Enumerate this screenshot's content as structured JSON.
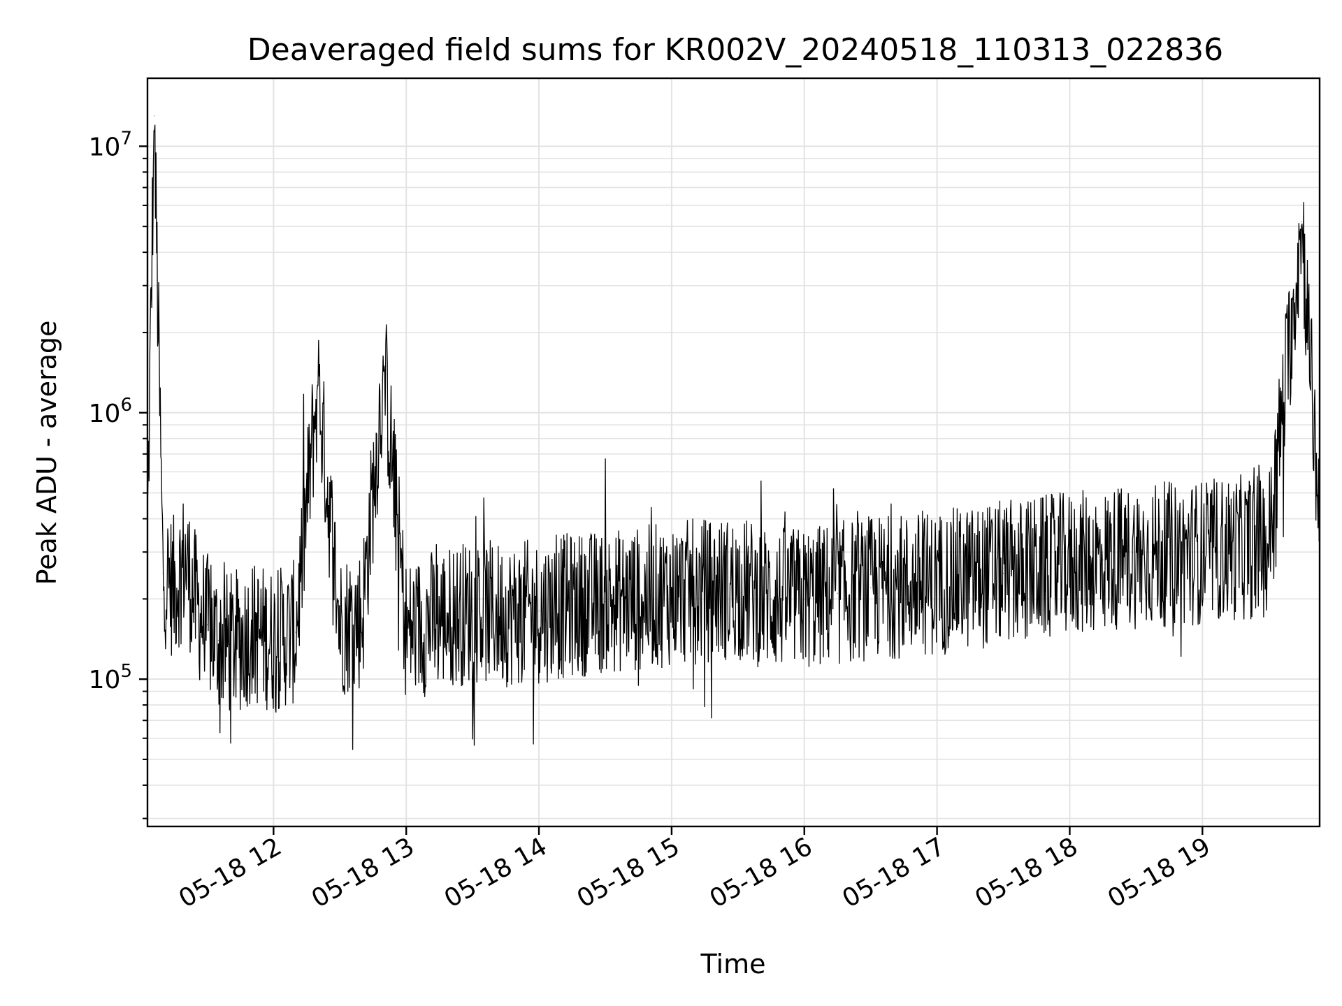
{
  "chart_data": {
    "type": "line",
    "title": "Deaveraged field sums for KR002V_20240518_110313_022836",
    "xlabel": "Time",
    "ylabel": "Peak ADU - average",
    "y_scale": "log",
    "ylim": [
      28000,
      18000000
    ],
    "xlim": [
      "2024-05-18 11:03",
      "2024-05-18 19:53"
    ],
    "x_ticks": [
      "2024-05-18 12:00",
      "2024-05-18 13:00",
      "2024-05-18 14:00",
      "2024-05-18 15:00",
      "2024-05-18 16:00",
      "2024-05-18 17:00",
      "2024-05-18 18:00",
      "2024-05-18 19:00"
    ],
    "x_tick_labels": [
      "05-18 12",
      "05-18 13",
      "05-18 14",
      "05-18 15",
      "05-18 16",
      "05-18 17",
      "05-18 18",
      "05-18 19"
    ],
    "y_ticks": [
      100000,
      1000000,
      10000000
    ],
    "y_tick_labels": [
      {
        "base": "10",
        "exp": "5"
      },
      {
        "base": "10",
        "exp": "6"
      },
      {
        "base": "10",
        "exp": "7"
      }
    ],
    "grid": true,
    "line_color": "#000000",
    "series": [
      {
        "x": [
          "2024-05-18 11:03",
          "2024-05-18 11:06",
          "2024-05-18 11:10",
          "2024-05-18 11:15",
          "2024-05-18 11:20",
          "2024-05-18 11:25",
          "2024-05-18 11:30",
          "2024-05-18 11:35",
          "2024-05-18 11:40",
          "2024-05-18 11:45",
          "2024-05-18 11:50",
          "2024-05-18 11:55",
          "2024-05-18 12:00",
          "2024-05-18 12:10",
          "2024-05-18 12:20",
          "2024-05-18 12:30",
          "2024-05-18 12:40",
          "2024-05-18 12:50",
          "2024-05-18 13:00",
          "2024-05-18 13:15",
          "2024-05-18 13:30",
          "2024-05-18 13:45",
          "2024-05-18 14:00",
          "2024-05-18 14:15",
          "2024-05-18 14:30",
          "2024-05-18 14:45",
          "2024-05-18 15:00",
          "2024-05-18 15:15",
          "2024-05-18 15:30",
          "2024-05-18 15:45",
          "2024-05-18 16:00",
          "2024-05-18 16:15",
          "2024-05-18 16:30",
          "2024-05-18 16:45",
          "2024-05-18 17:00",
          "2024-05-18 17:15",
          "2024-05-18 17:30",
          "2024-05-18 17:45",
          "2024-05-18 18:00",
          "2024-05-18 18:15",
          "2024-05-18 18:30",
          "2024-05-18 18:45",
          "2024-05-18 19:00",
          "2024-05-18 19:15",
          "2024-05-18 19:30",
          "2024-05-18 19:45",
          "2024-05-18 19:53"
        ],
        "y": [
          350000,
          13000000,
          250000,
          220000,
          280000,
          190000,
          160000,
          140000,
          135000,
          140000,
          150000,
          145000,
          140000,
          150000,
          1300000,
          160000,
          170000,
          1500000,
          150000,
          170000,
          180000,
          175000,
          180000,
          190000,
          195000,
          200000,
          210000,
          215000,
          220000,
          200000,
          200000,
          210000,
          220000,
          225000,
          230000,
          240000,
          250000,
          260000,
          270000,
          280000,
          290000,
          295000,
          300000,
          310000,
          320000,
          5200000,
          380000
        ]
      }
    ]
  }
}
